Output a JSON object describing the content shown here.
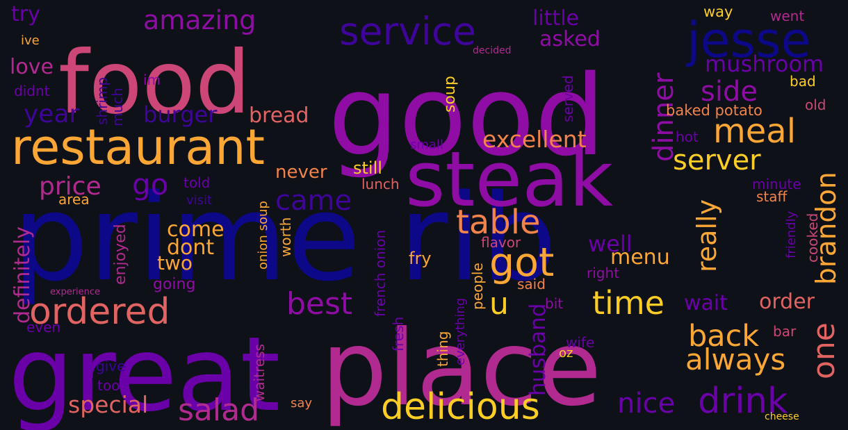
{
  "background": "#0e1118",
  "palette": {
    "navy": "#0d0887",
    "indigo": "#3f049a",
    "purple": "#6a00a8",
    "violet": "#8f0da4",
    "magenta": "#b12a90",
    "pink": "#cc4778",
    "coral": "#e16462",
    "orange": "#f2844b",
    "amber": "#fca636",
    "yellow": "#f0f921",
    "gold": "#fcce25"
  },
  "words": [
    {
      "text": "prime rib",
      "color": "navy"
    },
    {
      "text": "good",
      "color": "violet"
    },
    {
      "text": "food",
      "color": "pink"
    },
    {
      "text": "great",
      "color": "purple"
    },
    {
      "text": "place",
      "color": "magenta"
    },
    {
      "text": "steak",
      "color": "violet"
    },
    {
      "text": "restaurant",
      "color": "amber"
    },
    {
      "text": "service",
      "color": "indigo"
    },
    {
      "text": "jesse",
      "color": "navy"
    },
    {
      "text": "delicious",
      "color": "gold"
    },
    {
      "text": "ordered",
      "color": "coral"
    },
    {
      "text": "drink",
      "color": "purple"
    },
    {
      "text": "got",
      "color": "amber"
    },
    {
      "text": "meal",
      "color": "amber"
    },
    {
      "text": "table",
      "color": "orange"
    },
    {
      "text": "time",
      "color": "gold"
    },
    {
      "text": "best",
      "color": "violet"
    },
    {
      "text": "back",
      "color": "amber"
    },
    {
      "text": "always",
      "color": "amber"
    },
    {
      "text": "one",
      "color": "coral"
    },
    {
      "text": "salad",
      "color": "magenta"
    },
    {
      "text": "side",
      "color": "violet"
    },
    {
      "text": "dinner",
      "color": "violet"
    },
    {
      "text": "brandon",
      "color": "amber"
    },
    {
      "text": "server",
      "color": "gold"
    },
    {
      "text": "came",
      "color": "indigo"
    },
    {
      "text": "u",
      "color": "gold"
    },
    {
      "text": "nice",
      "color": "purple"
    },
    {
      "text": "really",
      "color": "amber"
    },
    {
      "text": "mushroom",
      "color": "purple"
    },
    {
      "text": "amazing",
      "color": "violet"
    },
    {
      "text": "price",
      "color": "magenta"
    },
    {
      "text": "go",
      "color": "purple"
    },
    {
      "text": "year",
      "color": "indigo"
    },
    {
      "text": "burger",
      "color": "indigo"
    },
    {
      "text": "excellent",
      "color": "orange"
    },
    {
      "text": "special",
      "color": "coral"
    },
    {
      "text": "love",
      "color": "magenta"
    },
    {
      "text": "well",
      "color": "purple"
    },
    {
      "text": "order",
      "color": "coral"
    },
    {
      "text": "wait",
      "color": "purple"
    },
    {
      "text": "husband",
      "color": "purple"
    },
    {
      "text": "menu",
      "color": "amber"
    },
    {
      "text": "dont",
      "color": "amber"
    },
    {
      "text": "come",
      "color": "amber"
    },
    {
      "text": "two",
      "color": "amber"
    },
    {
      "text": "little",
      "color": "purple"
    },
    {
      "text": "asked",
      "color": "violet"
    },
    {
      "text": "definitely",
      "color": "magenta"
    },
    {
      "text": "bread",
      "color": "coral"
    },
    {
      "text": "never",
      "color": "orange"
    },
    {
      "text": "try",
      "color": "purple"
    },
    {
      "text": "still",
      "color": "gold"
    },
    {
      "text": "soup",
      "color": "gold"
    },
    {
      "text": "baked potato",
      "color": "orange"
    },
    {
      "text": "onion soup",
      "color": "amber"
    },
    {
      "text": "french onion",
      "color": "purple"
    },
    {
      "text": "lunch",
      "color": "coral"
    },
    {
      "text": "fry",
      "color": "amber"
    },
    {
      "text": "flavor",
      "color": "pink"
    },
    {
      "text": "said",
      "color": "orange"
    },
    {
      "text": "people",
      "color": "amber"
    },
    {
      "text": "everything",
      "color": "purple"
    },
    {
      "text": "thing",
      "color": "amber"
    },
    {
      "text": "fresh",
      "color": "purple"
    },
    {
      "text": "waitress",
      "color": "magenta"
    },
    {
      "text": "worth",
      "color": "amber"
    },
    {
      "text": "enjoyed",
      "color": "magenta"
    },
    {
      "text": "going",
      "color": "violet"
    },
    {
      "text": "served",
      "color": "purple"
    },
    {
      "text": "cooked",
      "color": "pink"
    },
    {
      "text": "friendly",
      "color": "purple"
    },
    {
      "text": "right",
      "color": "violet"
    },
    {
      "text": "bit",
      "color": "violet"
    },
    {
      "text": "wife",
      "color": "purple"
    },
    {
      "text": "oz",
      "color": "gold"
    },
    {
      "text": "bar",
      "color": "pink"
    },
    {
      "text": "staff",
      "color": "orange"
    },
    {
      "text": "minute",
      "color": "purple"
    },
    {
      "text": "hot",
      "color": "purple"
    },
    {
      "text": "old",
      "color": "pink"
    },
    {
      "text": "bad",
      "color": "gold"
    },
    {
      "text": "way",
      "color": "gold"
    },
    {
      "text": "went",
      "color": "magenta"
    },
    {
      "text": "decided",
      "color": "magenta"
    },
    {
      "text": "ive",
      "color": "amber"
    },
    {
      "text": "im",
      "color": "violet"
    },
    {
      "text": "didnt",
      "color": "purple"
    },
    {
      "text": "shrimp",
      "color": "indigo"
    },
    {
      "text": "much",
      "color": "indigo"
    },
    {
      "text": "small",
      "color": "purple"
    },
    {
      "text": "told",
      "color": "purple"
    },
    {
      "text": "visit",
      "color": "indigo"
    },
    {
      "text": "area",
      "color": "amber"
    },
    {
      "text": "experience",
      "color": "magenta"
    },
    {
      "text": "even",
      "color": "purple"
    },
    {
      "text": "give",
      "color": "indigo"
    },
    {
      "text": "took",
      "color": "purple"
    },
    {
      "text": "say",
      "color": "orange"
    },
    {
      "text": "cheese",
      "color": "gold"
    }
  ]
}
